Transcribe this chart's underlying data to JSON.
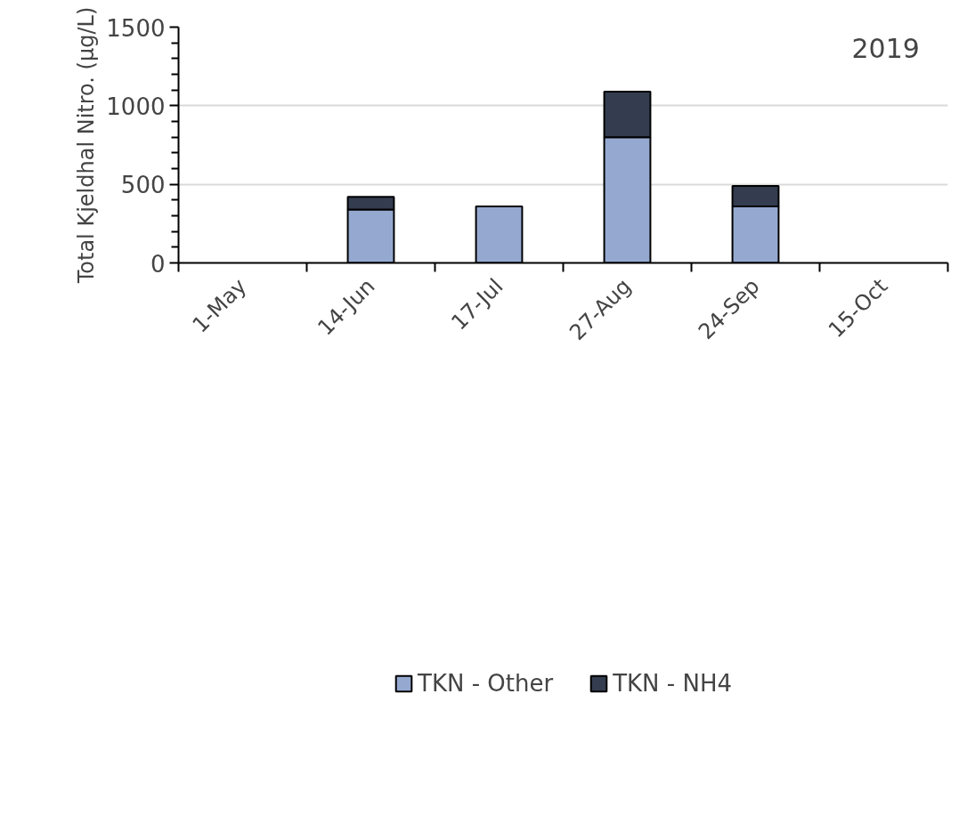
{
  "chart_data": {
    "type": "bar",
    "stacked": true,
    "ylabel": "Total Kjeldhal Nitro. (µg/L)",
    "categories": [
      "1-May",
      "14-Jun",
      "17-Jul",
      "27-Aug",
      "24-Sep",
      "15-Oct"
    ],
    "series": [
      {
        "name": "TKN - Other",
        "color": "#95a9d0",
        "values": [
          null,
          340,
          360,
          800,
          360,
          null
        ]
      },
      {
        "name": "TKN - NH4",
        "color": "#333d4f",
        "values": [
          null,
          80,
          null,
          290,
          130,
          null
        ]
      }
    ],
    "ylim": [
      0,
      1500
    ],
    "yticks": [
      0,
      {
        "value": 100,
        "label": null
      },
      {
        "value": 200,
        "label": null
      },
      {
        "value": 300,
        "label": null
      },
      {
        "value": 400,
        "label": null
      },
      500,
      {
        "value": 600,
        "label": null
      },
      {
        "value": 700,
        "label": null
      },
      {
        "value": 800,
        "label": null
      },
      {
        "value": 900,
        "label": null
      },
      1000,
      {
        "value": 1100,
        "label": null
      },
      {
        "value": 1200,
        "label": null
      },
      {
        "value": 1300,
        "label": null
      },
      {
        "value": 1400,
        "label": null
      },
      1500
    ],
    "grid": "y",
    "legend": "bottom",
    "annotations": [
      "2019"
    ]
  }
}
